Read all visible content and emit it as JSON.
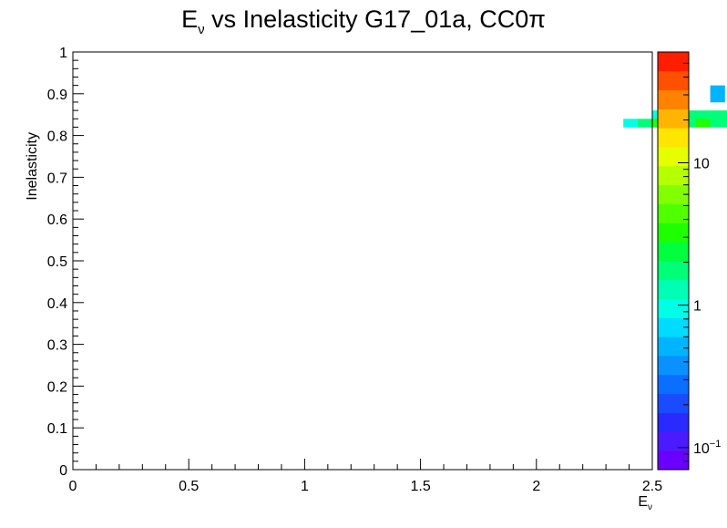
{
  "chart_data": {
    "type": "heatmap",
    "title_main": "E",
    "title_main_sub": "ν",
    "title_rest": " vs Inelasticity G17_01a, CC0π",
    "xlabel_main": "E",
    "xlabel_sub": "ν",
    "ylabel": "Inelasticity",
    "xlim": [
      0,
      2.5
    ],
    "ylim": [
      0,
      1
    ],
    "x_ticks": [
      {
        "v": 0,
        "label": "0"
      },
      {
        "v": 0.5,
        "label": "0.5"
      },
      {
        "v": 1,
        "label": "1"
      },
      {
        "v": 1.5,
        "label": "1.5"
      },
      {
        "v": 2,
        "label": "2"
      },
      {
        "v": 2.5,
        "label": "2.5"
      }
    ],
    "y_ticks": [
      {
        "v": 0,
        "label": "0"
      },
      {
        "v": 0.1,
        "label": "0.1"
      },
      {
        "v": 0.2,
        "label": "0.2"
      },
      {
        "v": 0.3,
        "label": "0.3"
      },
      {
        "v": 0.4,
        "label": "0.4"
      },
      {
        "v": 0.5,
        "label": "0.5"
      },
      {
        "v": 0.6,
        "label": "0.6"
      },
      {
        "v": 0.7,
        "label": "0.7"
      },
      {
        "v": 0.8,
        "label": "0.8"
      },
      {
        "v": 0.9,
        "label": "0.9"
      },
      {
        "v": 1,
        "label": "1"
      }
    ],
    "z_scale": "log",
    "zlim": [
      0.07,
      60
    ],
    "z_ticks": [
      {
        "v": 0.1,
        "label": "10",
        "sup": "−1"
      },
      {
        "v": 1,
        "label": "1",
        "sup": ""
      },
      {
        "v": 10,
        "label": "10",
        "sup": ""
      }
    ],
    "palette": [
      "#6a00ff",
      "#4c1aff",
      "#2a2aff",
      "#1a4cff",
      "#0a6eff",
      "#0a90ff",
      "#00b4ff",
      "#00dcff",
      "#00ffe6",
      "#00ffb4",
      "#00ff78",
      "#00ff3c",
      "#1eff00",
      "#50ff00",
      "#82ff00",
      "#b4ff00",
      "#e6ff00",
      "#ffe600",
      "#ffb400",
      "#ff8200",
      "#ff5000",
      "#ff1e00"
    ],
    "grid": false,
    "bins": {
      "nx": 40,
      "ny": 50,
      "x_edges_range": [
        0,
        2.5
      ],
      "y_edges_range": [
        0,
        1
      ],
      "ix_start": 5,
      "iy_start": 4,
      "z_rows": [
        [
          0,
          0,
          0,
          0,
          0,
          0,
          0,
          0,
          0,
          0,
          0,
          0,
          0,
          0,
          0,
          0,
          0,
          0,
          0,
          0,
          0,
          0,
          0,
          0,
          0,
          0,
          0,
          0,
          0,
          0,
          0,
          0,
          0,
          0,
          0,
          0,
          0,
          0,
          0,
          0.5,
          0,
          0,
          0,
          0,
          0,
          0,
          0,
          0
        ],
        [
          0,
          0,
          0,
          0,
          0,
          0,
          0,
          0,
          0,
          0,
          0,
          0,
          0,
          0,
          0,
          0,
          0,
          0,
          0,
          0,
          0,
          0,
          0,
          0,
          0,
          0,
          0,
          0,
          0,
          0,
          0,
          0,
          0,
          0,
          0,
          0,
          0,
          0,
          0,
          0.5,
          0,
          0,
          0,
          0.6,
          0,
          0,
          0,
          0
        ],
        [
          0,
          0,
          0,
          0,
          0,
          0,
          0,
          0,
          0,
          0,
          0,
          0,
          0,
          0,
          0,
          0,
          0,
          0,
          0,
          0,
          0,
          0,
          0,
          0,
          0,
          0,
          0,
          0,
          0,
          0,
          0,
          0,
          0,
          0,
          0,
          0,
          0,
          0,
          0,
          0,
          0,
          0,
          1,
          0,
          0,
          1,
          0,
          0
        ],
        [
          0,
          0,
          0,
          0,
          0,
          0,
          0,
          0,
          0,
          0,
          0,
          0,
          0,
          0,
          0,
          0,
          0,
          0,
          0,
          0,
          0,
          0,
          0,
          0,
          0,
          0,
          0,
          0,
          0,
          0,
          0,
          0,
          0,
          0,
          0,
          1,
          1,
          2,
          2,
          2,
          2,
          1,
          1,
          1,
          1,
          1,
          0,
          0
        ],
        [
          0,
          0,
          0,
          0,
          0,
          0,
          0,
          0,
          0,
          0,
          0,
          0,
          0,
          0,
          0,
          0,
          0,
          0,
          0,
          0,
          0,
          0,
          0,
          0,
          0,
          0,
          0,
          0,
          0,
          0,
          0,
          0,
          0,
          1,
          2,
          3,
          3,
          2,
          3,
          2,
          2,
          2,
          1,
          2,
          1,
          2,
          1,
          2
        ]
      ]
    }
  }
}
